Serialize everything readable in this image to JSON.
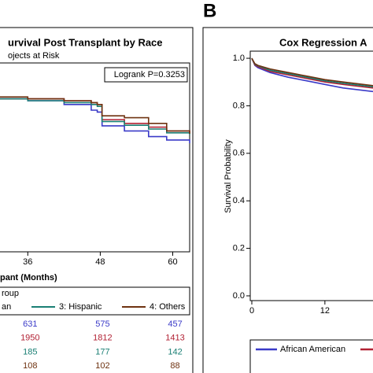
{
  "panel_label": "B",
  "chart_data": [
    {
      "type": "line",
      "title": "urvival Post Transplant by Race",
      "subtitle": "ojects at Risk",
      "annotation": "Logrank P=0.3253",
      "x_label": "pant (Months)",
      "legend_title": "roup",
      "x": [
        31.4,
        36,
        42,
        46.5,
        47.5,
        48.3,
        52,
        56,
        59,
        62.8
      ],
      "xlim": [
        31.4,
        62.8
      ],
      "xticks": [
        36,
        48,
        60
      ],
      "ylim": [
        0,
        1
      ],
      "series": [
        {
          "name": "an",
          "color": "#3a3ac8",
          "values": [
            0.81,
            0.8,
            0.78,
            0.75,
            0.74,
            0.667,
            0.64,
            0.61,
            0.592,
            0.575
          ],
          "at_risk": [
            631,
            575,
            457
          ]
        },
        {
          "color": "#b22234",
          "values": [
            0.81,
            0.81,
            0.8,
            0.79,
            0.78,
            0.7,
            0.68,
            0.66,
            0.64,
            0.625
          ],
          "at_risk": [
            1950,
            1812,
            1413
          ]
        },
        {
          "name": "3: Hispanic",
          "color": "#1a7f74",
          "values": [
            0.81,
            0.8,
            0.79,
            0.78,
            0.77,
            0.69,
            0.67,
            0.65,
            0.63,
            0.62
          ],
          "at_risk": [
            185,
            177,
            142
          ]
        },
        {
          "name": "4: Others",
          "color": "#6e3210",
          "values": [
            0.82,
            0.81,
            0.8,
            0.79,
            0.78,
            0.72,
            0.71,
            0.68,
            0.64,
            0.625
          ],
          "at_risk": [
            108,
            102,
            88
          ]
        }
      ]
    },
    {
      "type": "line",
      "title": "Cox Regression A",
      "y_label": "Survival Probability",
      "x": [
        0,
        0.5,
        1,
        3,
        6,
        9,
        12,
        15,
        19.9
      ],
      "xlim": [
        -0.26,
        19.9
      ],
      "xticks": [
        0,
        12
      ],
      "ylim": [
        -0.02,
        1.03
      ],
      "yticks": [
        {
          "value": 0,
          "label": "0.0"
        },
        0.2,
        0.4,
        0.6,
        0.8,
        {
          "value": 1,
          "label": "1.0"
        }
      ],
      "series": [
        {
          "name": "African American",
          "color": "#3a3ac8",
          "values": [
            1.0,
            0.97,
            0.96,
            0.94,
            0.92,
            0.905,
            0.89,
            0.875,
            0.86
          ]
        },
        {
          "color": "#b22234",
          "values": [
            1.0,
            0.972,
            0.965,
            0.945,
            0.93,
            0.915,
            0.9,
            0.89,
            0.875
          ]
        },
        {
          "color": "#1a7f74",
          "values": [
            1.0,
            0.975,
            0.968,
            0.95,
            0.935,
            0.92,
            0.905,
            0.895,
            0.88
          ]
        },
        {
          "color": "#6e3210",
          "values": [
            1.0,
            0.977,
            0.97,
            0.955,
            0.94,
            0.925,
            0.91,
            0.9,
            0.885
          ]
        }
      ]
    }
  ]
}
